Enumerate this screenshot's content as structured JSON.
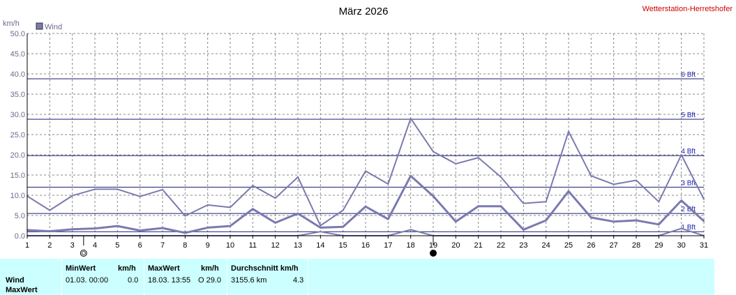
{
  "header": {
    "title": "März 2026",
    "station": "Wetterstation-Herretshofer",
    "unit": "km/h",
    "legend_label": "Wind"
  },
  "colors": {
    "series": "#7a7ab0",
    "grid": "#888888",
    "beaufort_line": "#1a1a70",
    "beaufort_label": "#1a1aa8",
    "stats_bg": "#ccffff"
  },
  "chart_data": {
    "type": "line",
    "ylabel": "km/h",
    "ylim": [
      0,
      50
    ],
    "y_ticks": [
      "0.0",
      "5.0",
      "10.0",
      "15.0",
      "20.0",
      "25.0",
      "30.0",
      "35.0",
      "40.0",
      "45.0",
      "50.0"
    ],
    "x": [
      1,
      2,
      3,
      4,
      5,
      6,
      7,
      8,
      9,
      10,
      11,
      12,
      13,
      14,
      15,
      16,
      17,
      18,
      19,
      20,
      21,
      22,
      23,
      24,
      25,
      26,
      27,
      28,
      29,
      30,
      31
    ],
    "series": [
      {
        "values": [
          9.8,
          6.3,
          9.9,
          11.5,
          11.5,
          9.7,
          11.4,
          4.9,
          7.6,
          7.0,
          12.4,
          9.3,
          14.5,
          2.5,
          6.3,
          16.0,
          12.8,
          29.0,
          20.8,
          17.8,
          19.3,
          14.5,
          8.0,
          8.4,
          25.8,
          14.8,
          12.7,
          13.7,
          8.4,
          20.0,
          9.0
        ]
      },
      {
        "values": [
          1.4,
          1.1,
          1.6,
          1.8,
          2.4,
          1.3,
          1.9,
          0.7,
          2.0,
          2.4,
          6.6,
          3.2,
          5.5,
          2.0,
          2.2,
          7.2,
          4.1,
          14.8,
          9.8,
          3.5,
          7.3,
          7.3,
          1.5,
          3.8,
          11.0,
          4.5,
          3.5,
          3.8,
          2.8,
          8.7,
          3.6
        ]
      },
      {
        "values": [
          0,
          0,
          0,
          0,
          0,
          0,
          0,
          0,
          0,
          0,
          0,
          0,
          0,
          1.0,
          0,
          0,
          0,
          1.5,
          0,
          0,
          0,
          0,
          0,
          0,
          0,
          0,
          0,
          0,
          0,
          1.8,
          0
        ]
      }
    ],
    "beaufort": [
      {
        "label": "1 Bft",
        "value": 1
      },
      {
        "label": "2 Bft",
        "value": 5.5
      },
      {
        "label": "3 Bft",
        "value": 12
      },
      {
        "label": "4 Bft",
        "value": 19.8
      },
      {
        "label": "5 Bft",
        "value": 28.8
      },
      {
        "label": "6 Bft",
        "value": 38.8
      }
    ],
    "moon_phases": [
      {
        "day": 3.5,
        "phase": "full-moon"
      },
      {
        "day": 19,
        "phase": "new-moon"
      }
    ]
  },
  "stats": {
    "row1": "Wind",
    "row2": "MaxWert",
    "min_header": "MinWert",
    "min_unit": "km/h",
    "min_datetime": "01.03.  00:00",
    "min_value": "0.0",
    "max_header": "MaxWert",
    "max_unit": "km/h",
    "max_datetime": "18.03.  13:55",
    "max_value": "O 29.0",
    "avg_header": "Durchschnitt km/h",
    "avg_distance": "3155.6 km",
    "avg_value": "4.3"
  }
}
